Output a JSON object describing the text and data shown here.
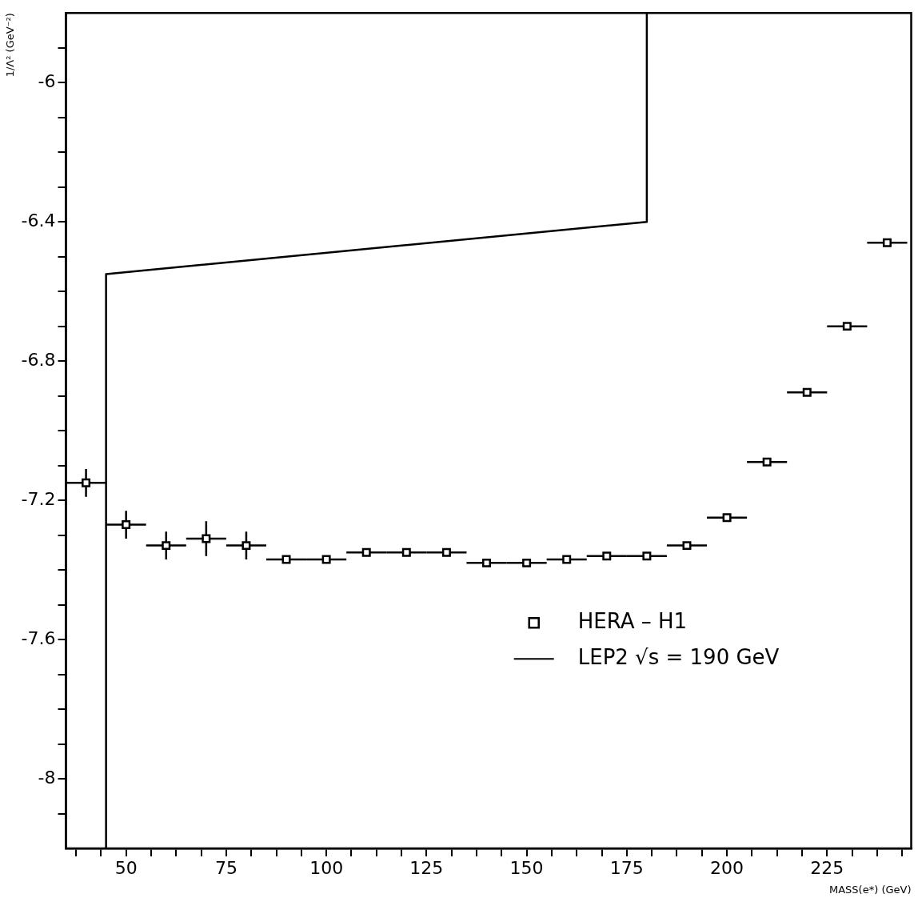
{
  "chart_data": {
    "type": "scatter",
    "xlabel": "MASS(e*) (GeV)",
    "ylabel": "1/Λ² (GeV⁻²)",
    "xlim": [
      35,
      246
    ],
    "ylim": [
      -8.2,
      -5.8
    ],
    "xticks": [
      {
        "value": 37.5,
        "label": null
      },
      {
        "value": 43.75,
        "label": null
      },
      50,
      {
        "value": 56.25,
        "label": null
      },
      {
        "value": 62.5,
        "label": null
      },
      {
        "value": 68.75,
        "label": null
      },
      75,
      {
        "value": 81.25,
        "label": null
      },
      {
        "value": 87.5,
        "label": null
      },
      {
        "value": 93.75,
        "label": null
      },
      100,
      {
        "value": 106.25,
        "label": null
      },
      {
        "value": 112.5,
        "label": null
      },
      {
        "value": 118.75,
        "label": null
      },
      125,
      {
        "value": 131.25,
        "label": null
      },
      {
        "value": 137.5,
        "label": null
      },
      {
        "value": 143.75,
        "label": null
      },
      150,
      {
        "value": 156.25,
        "label": null
      },
      {
        "value": 162.5,
        "label": null
      },
      {
        "value": 168.75,
        "label": null
      },
      175,
      {
        "value": 181.25,
        "label": null
      },
      {
        "value": 187.5,
        "label": null
      },
      {
        "value": 193.75,
        "label": null
      },
      200,
      {
        "value": 206.25,
        "label": null
      },
      {
        "value": 212.5,
        "label": null
      },
      {
        "value": 218.75,
        "label": null
      },
      225,
      {
        "value": 231.25,
        "label": null
      },
      {
        "value": 237.5,
        "label": null
      },
      {
        "value": 243.75,
        "label": null
      }
    ],
    "yticks": [
      {
        "value": -8.1,
        "label": null
      },
      -8,
      {
        "value": -7.9,
        "label": null
      },
      {
        "value": -7.8,
        "label": null
      },
      {
        "value": -7.7,
        "label": null
      },
      -7.6,
      {
        "value": -7.5,
        "label": null
      },
      {
        "value": -7.4,
        "label": null
      },
      {
        "value": -7.3,
        "label": null
      },
      -7.2,
      {
        "value": -7.1,
        "label": null
      },
      {
        "value": -7.0,
        "label": null
      },
      {
        "value": -6.9,
        "label": null
      },
      -6.8,
      {
        "value": -6.7,
        "label": null
      },
      {
        "value": -6.6,
        "label": null
      },
      {
        "value": -6.5,
        "label": null
      },
      -6.4,
      {
        "value": -6.3,
        "label": null
      },
      {
        "value": -6.2,
        "label": null
      },
      {
        "value": -6.1,
        "label": null
      },
      -6,
      {
        "value": -5.9,
        "label": null
      }
    ],
    "grid": false,
    "legend": "bottom right",
    "series": [
      {
        "name": "HERA – H1",
        "color": "#000000",
        "marker": "square",
        "x": [
          40,
          50,
          60,
          70,
          80,
          90,
          100,
          110,
          120,
          130,
          140,
          150,
          160,
          170,
          180,
          190,
          200,
          210,
          220,
          230,
          240
        ],
        "values": [
          -7.15,
          -7.27,
          -7.33,
          -7.31,
          -7.33,
          -7.37,
          -7.37,
          -7.35,
          -7.35,
          -7.35,
          -7.38,
          -7.38,
          -7.37,
          -7.36,
          -7.36,
          -7.33,
          -7.25,
          -7.09,
          -6.89,
          -6.7,
          -6.46
        ],
        "errors": [
          0.04,
          0.04,
          0.04,
          0.05,
          0.04,
          0.01,
          0.01,
          null,
          null,
          null,
          null,
          null,
          null,
          null,
          null,
          null,
          null,
          null,
          null,
          null,
          null
        ],
        "xerrors": [
          5,
          5,
          5,
          5,
          5,
          5,
          5,
          5,
          5,
          5,
          5,
          5,
          5,
          5,
          5,
          5,
          5,
          5,
          5,
          5,
          5
        ]
      },
      {
        "name": "LEP2 √s = 190 GeV",
        "type": "line",
        "color": "#000000",
        "marker": "none",
        "line_style": "solid",
        "x": [
          45,
          45,
          180,
          180
        ],
        "values": [
          -8.2,
          -6.55,
          -6.4,
          -5.8
        ]
      }
    ]
  }
}
